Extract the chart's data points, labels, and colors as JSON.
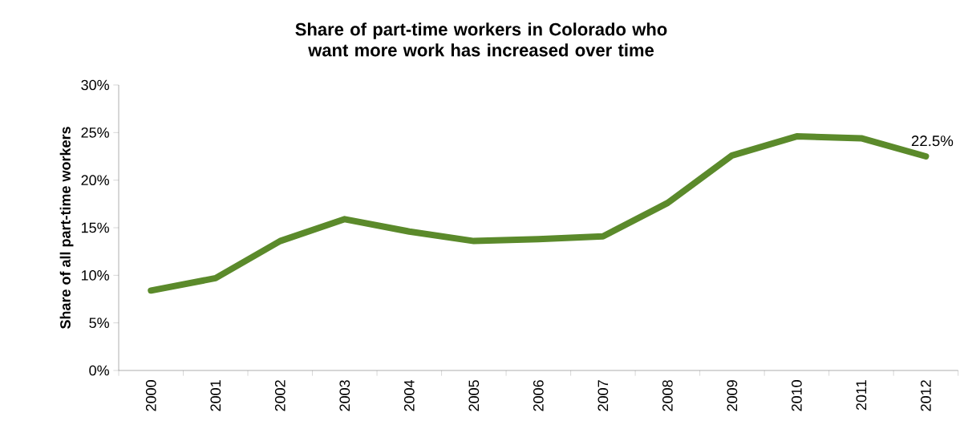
{
  "chart_data": {
    "type": "line",
    "title": "Share of part-time workers in Colorado who want more work has increased over time",
    "ylabel": "Share of all part-time workers",
    "categories": [
      "2000",
      "2001",
      "2002",
      "2003",
      "2004",
      "2005",
      "2006",
      "2007",
      "2008",
      "2009",
      "2010",
      "2011",
      "2012"
    ],
    "series": [
      {
        "color": "#5b8a2b",
        "values": [
          8.4,
          9.7,
          13.6,
          15.9,
          14.6,
          13.6,
          13.8,
          14.1,
          17.6,
          22.6,
          24.6,
          24.4,
          22.5
        ]
      }
    ],
    "ylim": [
      0,
      30
    ],
    "yticks": [
      {
        "value": 0,
        "label": "0%"
      },
      {
        "value": 5,
        "label": "5%"
      },
      {
        "value": 10,
        "label": "10%"
      },
      {
        "value": 15,
        "label": "15%"
      },
      {
        "value": 20,
        "label": "20%"
      },
      {
        "value": 25,
        "label": "25%"
      },
      {
        "value": 30,
        "label": "30%"
      }
    ],
    "annotations": [
      {
        "text": "22.5%",
        "x": "2012",
        "y": 22.5
      }
    ],
    "grid": false,
    "marker": "none",
    "line_style": "solid"
  }
}
